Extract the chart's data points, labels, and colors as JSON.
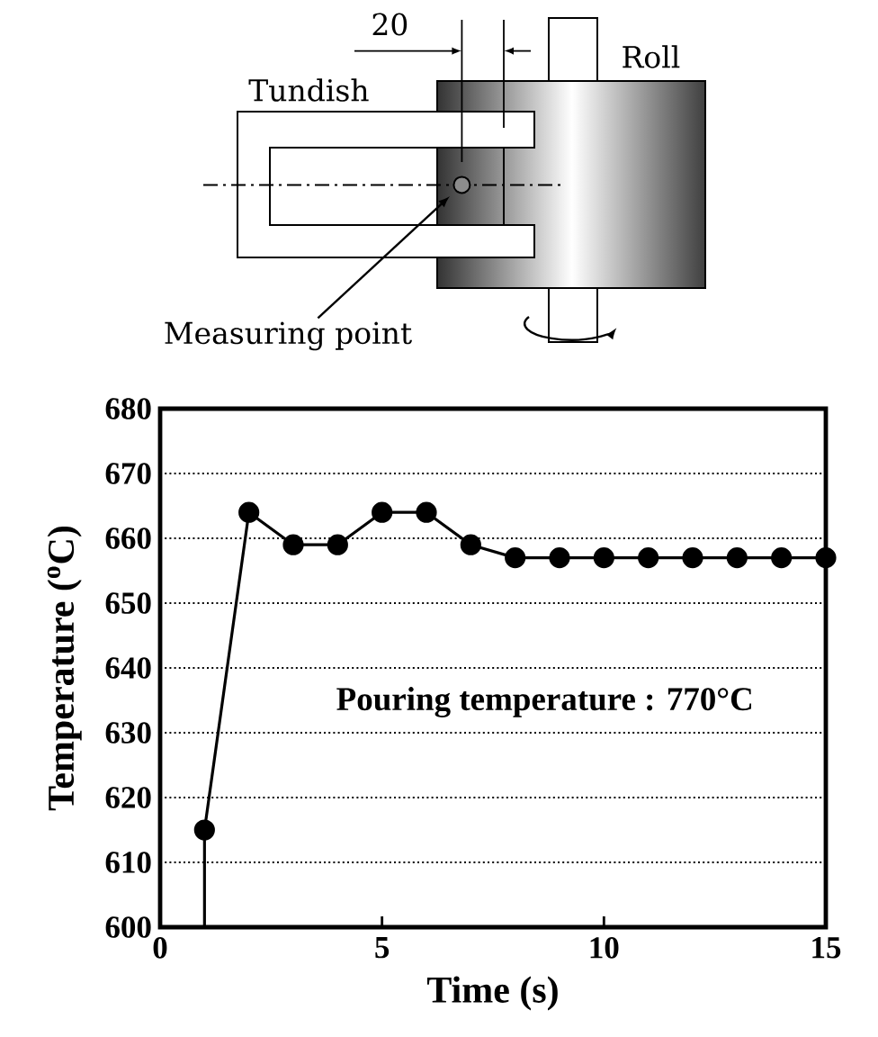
{
  "chart_data": {
    "type": "line",
    "xlabel": "Time (s)",
    "ylabel": "Temperature ($^{o}$C)",
    "xlim": [
      0,
      15
    ],
    "xticks": [
      0,
      5,
      10,
      15
    ],
    "ylim": [
      600,
      680
    ],
    "yticks": [
      600,
      610,
      620,
      630,
      640,
      650,
      660,
      670,
      680
    ],
    "grid": "y",
    "marker": "circle",
    "series": [
      {
        "x": [
          1,
          2,
          3,
          4,
          5,
          6,
          7,
          8,
          9,
          10,
          11,
          12,
          13,
          14,
          15
        ],
        "values": [
          615,
          664,
          659,
          659,
          664,
          664,
          659,
          657,
          657,
          657,
          657,
          657,
          657,
          657,
          657
        ],
        "color": "#000000"
      },
      {
        "x": [
          1,
          1
        ],
        "values": [
          600,
          615
        ],
        "color": "#000000",
        "marker": "none"
      }
    ],
    "annotations": [
      "20",
      "Roll",
      "Tundish",
      "Measuring point",
      "Pouring temperature : 770°C"
    ]
  }
}
